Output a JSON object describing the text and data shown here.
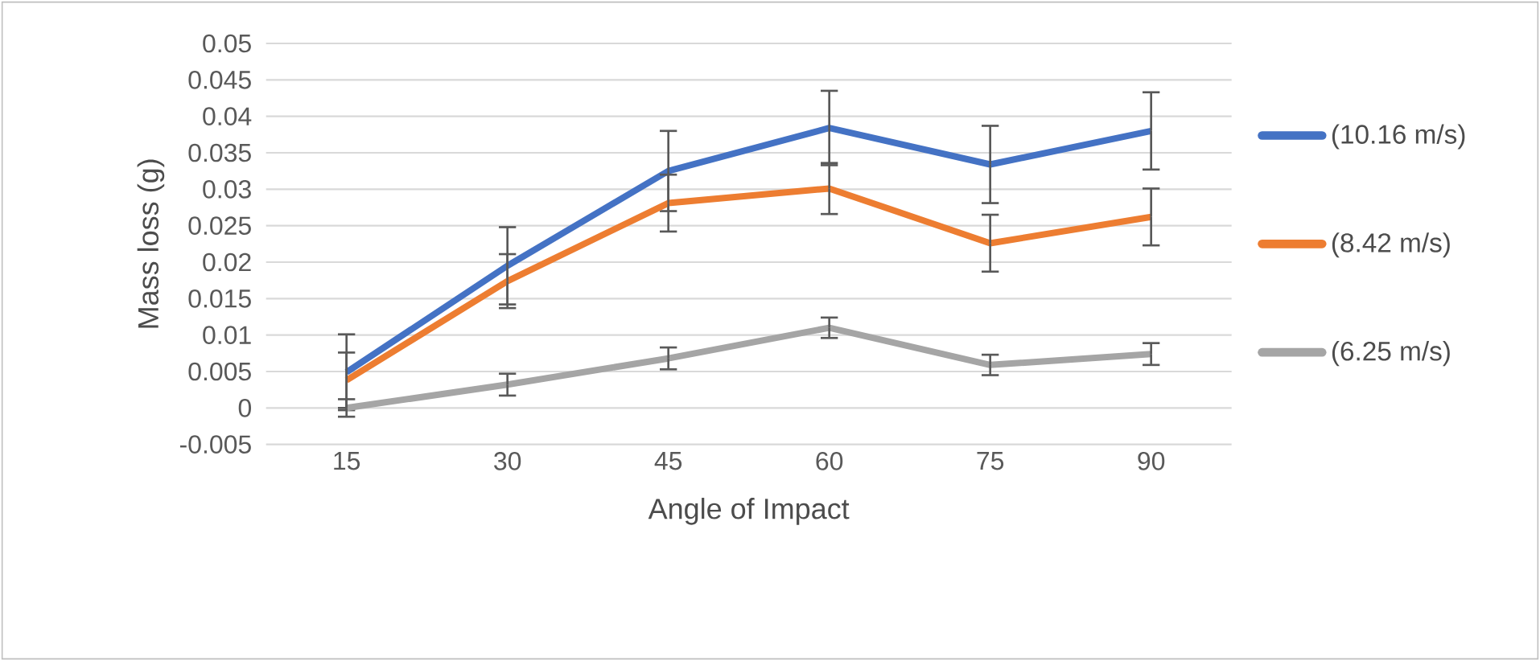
{
  "chart_data": {
    "type": "line",
    "xlabel": "Angle of Impact",
    "ylabel": "Mass loss (g)",
    "categories": [
      "15",
      "30",
      "45",
      "60",
      "75",
      "90"
    ],
    "series": [
      {
        "name": "(10.16 m/s)",
        "color": "#4472c4",
        "values": [
          0.0049,
          0.0195,
          0.0325,
          0.0384,
          0.0334,
          0.038
        ],
        "errors": [
          0.0052,
          0.0053,
          0.0055,
          0.0051,
          0.0053,
          0.0053
        ]
      },
      {
        "name": "(8.42 m/s)",
        "color": "#ed7d31",
        "values": [
          0.0038,
          0.0174,
          0.0281,
          0.0301,
          0.0226,
          0.0262
        ],
        "errors": [
          0.0038,
          0.0037,
          0.0039,
          0.0035,
          0.0039,
          0.0039
        ]
      },
      {
        "name": "(6.25 m/s)",
        "color": "#a5a5a5",
        "values": [
          0.0,
          0.0032,
          0.0068,
          0.011,
          0.0059,
          0.0074
        ],
        "errors": [
          0.0012,
          0.0015,
          0.0015,
          0.0014,
          0.0014,
          0.0015
        ]
      }
    ],
    "ylim": [
      -0.005,
      0.05
    ],
    "yticks": [
      -0.005,
      0,
      0.005,
      0.01,
      0.015,
      0.02,
      0.025,
      0.03,
      0.035,
      0.04,
      0.045,
      0.05
    ],
    "grid": "y",
    "legend": "right",
    "marker": "none",
    "line_style": "solid"
  }
}
